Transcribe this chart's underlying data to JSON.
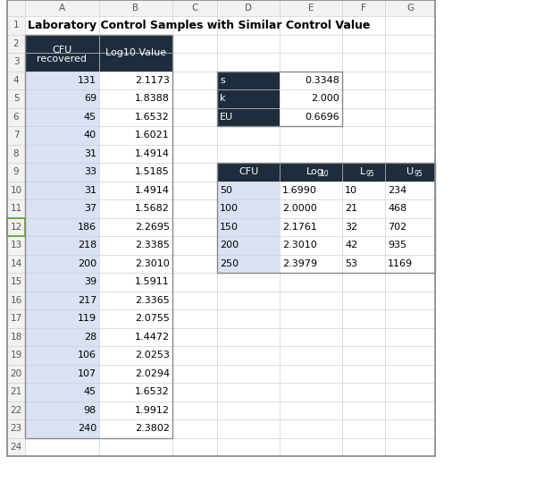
{
  "title": "Laboratory Control Samples with Similar Control Value",
  "col_labels": [
    "",
    "A",
    "B",
    "C",
    "D",
    "E",
    "F",
    "G"
  ],
  "cfu_data": [
    [
      131,
      "2.1173"
    ],
    [
      69,
      "1.8388"
    ],
    [
      45,
      "1.6532"
    ],
    [
      40,
      "1.6021"
    ],
    [
      31,
      "1.4914"
    ],
    [
      33,
      "1.5185"
    ],
    [
      31,
      "1.4914"
    ],
    [
      37,
      "1.5682"
    ],
    [
      186,
      "2.2695"
    ],
    [
      218,
      "2.3385"
    ],
    [
      200,
      "2.3010"
    ],
    [
      39,
      "1.5911"
    ],
    [
      217,
      "2.3365"
    ],
    [
      119,
      "2.0755"
    ],
    [
      28,
      "1.4472"
    ],
    [
      106,
      "2.0253"
    ],
    [
      107,
      "2.0294"
    ],
    [
      45,
      "1.6532"
    ],
    [
      98,
      "1.9912"
    ],
    [
      240,
      "2.3802"
    ]
  ],
  "params": [
    [
      "s",
      "0.3348"
    ],
    [
      "k",
      "2.000"
    ],
    [
      "EU",
      "0.6696"
    ]
  ],
  "table2_data": [
    [
      "50",
      "1.6990",
      "10",
      "234"
    ],
    [
      "100",
      "2.0000",
      "21",
      "468"
    ],
    [
      "150",
      "2.1761",
      "32",
      "702"
    ],
    [
      "200",
      "2.3010",
      "42",
      "935"
    ],
    [
      "250",
      "2.3979",
      "53",
      "1169"
    ]
  ],
  "dark_bg": "#1E2D3D",
  "light_row": "#D9E1F2",
  "white": "#FFFFFF",
  "grid_line": "#D0D0D0",
  "header_bg": "#F2F2F2",
  "text_dark": "#000000",
  "text_mid": "#333333",
  "green_border": "#70AD47",
  "green_bg": "#E2EFDA"
}
